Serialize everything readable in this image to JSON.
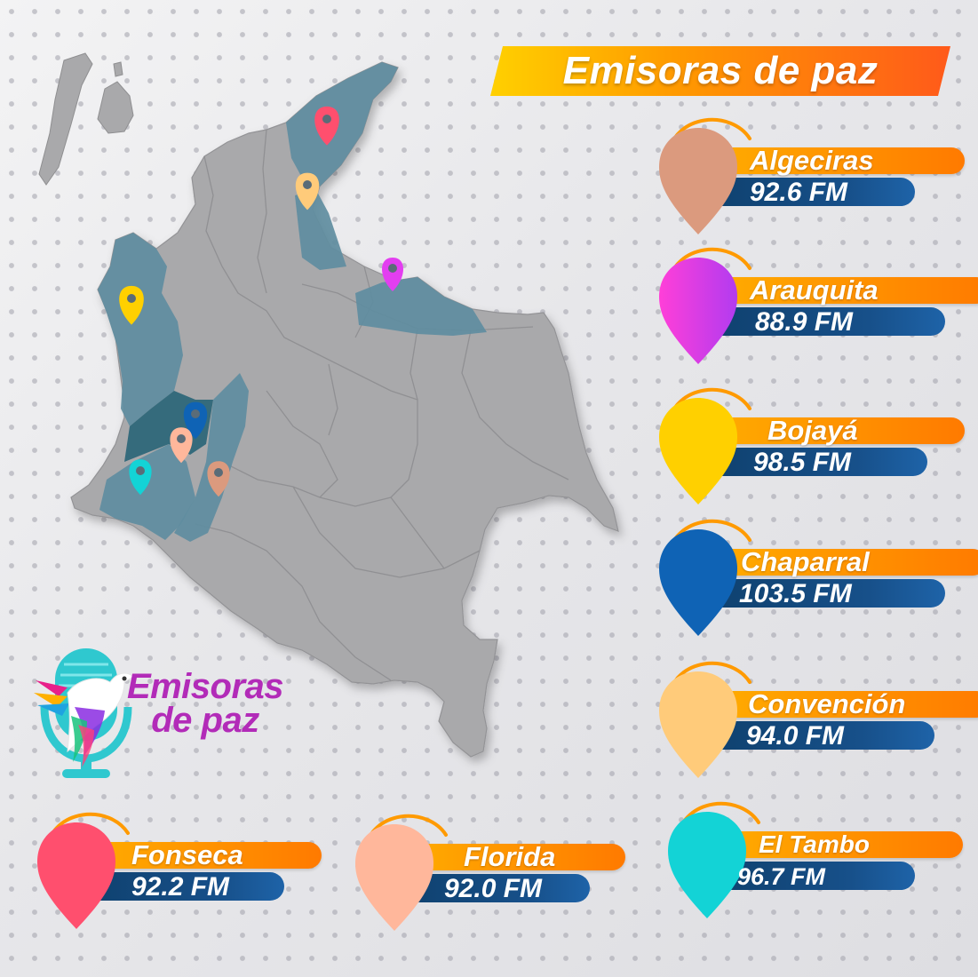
{
  "title": "Emisoras de paz",
  "logo": {
    "line1": "Emisoras",
    "line2": "de paz"
  },
  "stations": [
    {
      "name": "Algeciras",
      "frequency": "92.6 FM",
      "color": "#db9a7e"
    },
    {
      "name": "Arauquita",
      "frequency": "88.9 FM",
      "color": "#e33ef0"
    },
    {
      "name": "Bojayá",
      "frequency": "98.5 FM",
      "color": "#ffd000"
    },
    {
      "name": "Chaparral",
      "frequency": "103.5 FM",
      "color": "#0f63b5"
    },
    {
      "name": "Convención",
      "frequency": "94.0 FM",
      "color": "#ffcb7a"
    },
    {
      "name": "El Tambo",
      "frequency": "96.7 FM",
      "color": "#13d3d6"
    },
    {
      "name": "Fonseca",
      "frequency": "92.2 FM",
      "color": "#ff4f6e"
    },
    {
      "name": "Florida",
      "frequency": "92.0 FM",
      "color": "#ffb79b"
    }
  ],
  "colors": {
    "map_land": "#a9a9ab",
    "map_region": "#5f8da0",
    "map_region_dark": "#2e6779",
    "title_gradient_start": "#ffd000",
    "title_gradient_end": "#ff5a1a",
    "frequency_bar": "#134a7f",
    "logo_text": "#b22bb8",
    "logo_mic": "#2fc8cf"
  }
}
